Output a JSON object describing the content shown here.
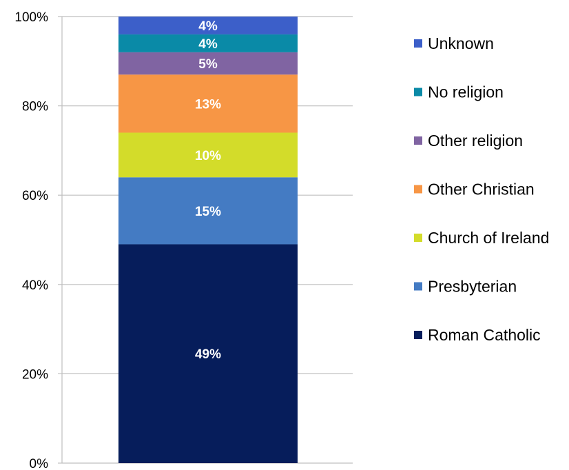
{
  "chart_data": {
    "type": "bar",
    "stacked": true,
    "categories": [
      ""
    ],
    "ylim": [
      0,
      100
    ],
    "y_ticks": [
      "0%",
      "20%",
      "40%",
      "60%",
      "80%",
      "100%"
    ],
    "y_tick_values": [
      0,
      20,
      40,
      60,
      80,
      100
    ],
    "grid": true,
    "legend_position": "right",
    "series": [
      {
        "name": "Roman Catholic",
        "values": [
          49
        ],
        "label": "49%",
        "color": "#061d5b"
      },
      {
        "name": "Presbyterian",
        "values": [
          15
        ],
        "label": "15%",
        "color": "#447bc3"
      },
      {
        "name": "Church of Ireland",
        "values": [
          10
        ],
        "label": "10%",
        "color": "#d3dc2a"
      },
      {
        "name": "Other Christian",
        "values": [
          13
        ],
        "label": "13%",
        "color": "#f79645"
      },
      {
        "name": "Other religion",
        "values": [
          5
        ],
        "label": "5%",
        "color": "#8064a2"
      },
      {
        "name": "No religion",
        "values": [
          4
        ],
        "label": "4%",
        "color": "#0a8aa7"
      },
      {
        "name": "Unknown",
        "values": [
          4
        ],
        "label": "4%",
        "color": "#3c5fc9"
      }
    ]
  }
}
